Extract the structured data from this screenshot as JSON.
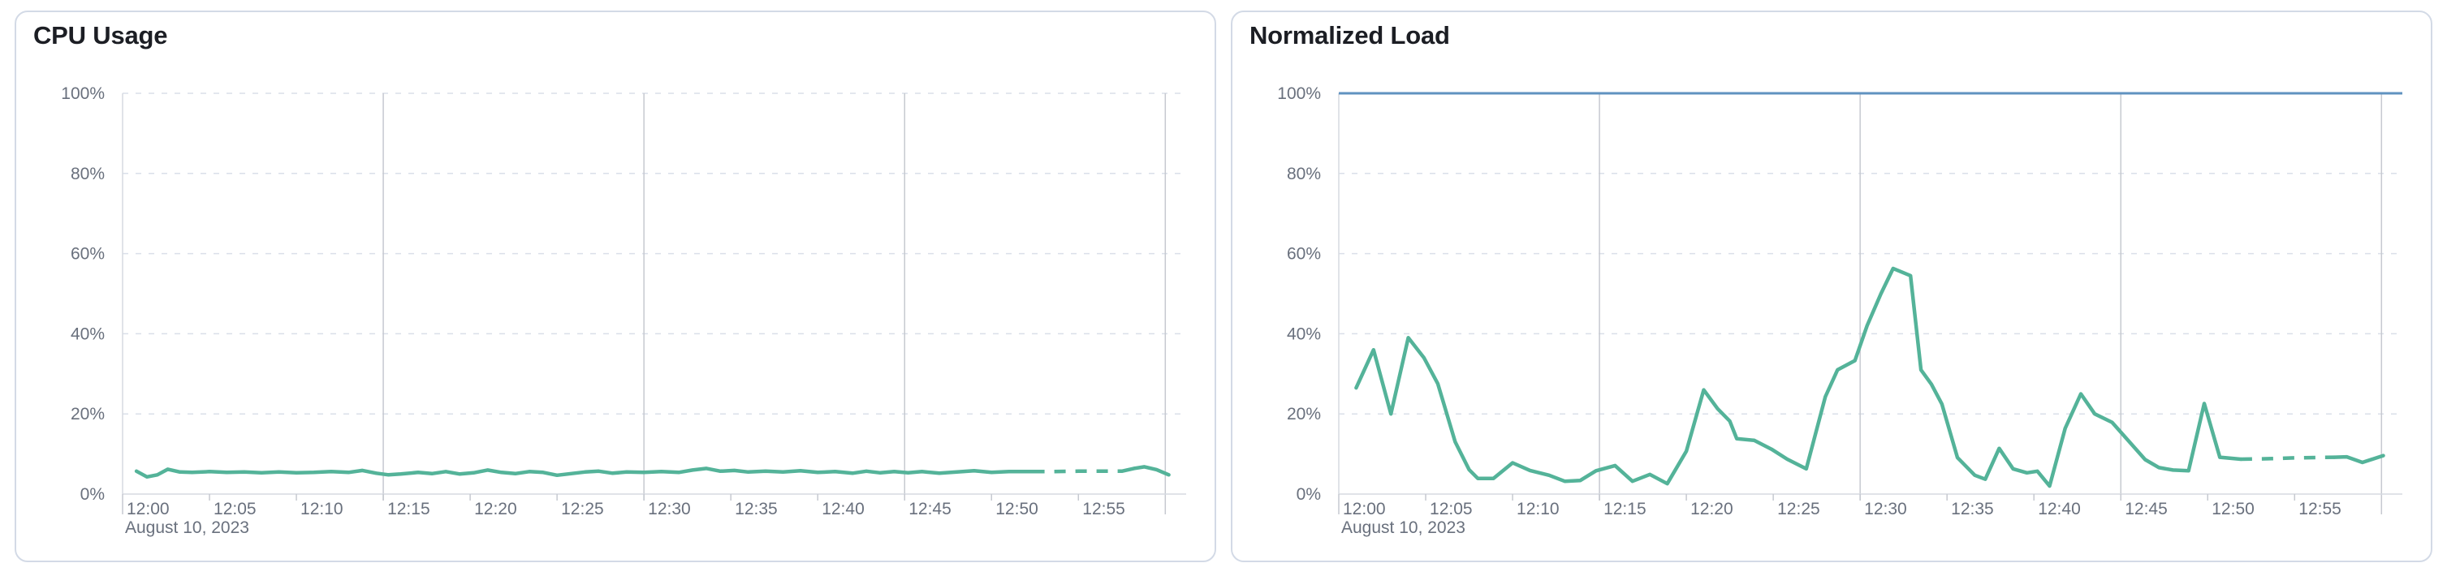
{
  "colors": {
    "series_green": "#54b399",
    "reference_blue": "#6092c0",
    "grid_dashed": "#dadfe9",
    "grid_vertical": "#c6c9d0",
    "axis_line": "#d6dae1",
    "tick_text": "#69707d",
    "title_text": "#1c1e24",
    "panel_border": "#d3dae6",
    "panel_background": "#ffffff"
  },
  "chart_data": [
    {
      "type": "line",
      "title": "CPU Usage",
      "x_axis": {
        "tick_labels": [
          "12:00",
          "12:05",
          "12:10",
          "12:15",
          "12:20",
          "12:25",
          "12:30",
          "12:35",
          "12:40",
          "12:45",
          "12:50",
          "12:55"
        ],
        "tick_interval_minutes": 5,
        "gridline_minutes": [
          15,
          30,
          45,
          60
        ],
        "date_label": "August 10, 2023",
        "range_minutes": [
          0,
          61
        ]
      },
      "y_axis": {
        "tick_labels": [
          "0%",
          "20%",
          "40%",
          "60%",
          "80%",
          "100%"
        ],
        "min": 0,
        "max": 100,
        "unit": "%"
      },
      "reference_line": null,
      "series": [
        {
          "name": "CPU usage",
          "color": "#54b399",
          "unit": "%",
          "segments": [
            {
              "style": "solid",
              "points": [
                [
                  0.8,
                  5.7
                ],
                [
                  1.4,
                  4.3
                ],
                [
                  2.0,
                  4.8
                ],
                [
                  2.6,
                  6.2
                ],
                [
                  3.3,
                  5.5
                ],
                [
                  4,
                  5.4
                ],
                [
                  5,
                  5.6
                ],
                [
                  6,
                  5.4
                ],
                [
                  7,
                  5.5
                ],
                [
                  8,
                  5.3
                ],
                [
                  9,
                  5.5
                ],
                [
                  10,
                  5.3
                ],
                [
                  11,
                  5.4
                ],
                [
                  12,
                  5.6
                ],
                [
                  13,
                  5.4
                ],
                [
                  13.8,
                  5.9
                ],
                [
                  14.6,
                  5.2
                ],
                [
                  15.3,
                  4.8
                ],
                [
                  16,
                  5.0
                ],
                [
                  17,
                  5.4
                ],
                [
                  17.8,
                  5.1
                ],
                [
                  18.6,
                  5.6
                ],
                [
                  19.4,
                  5.0
                ],
                [
                  20.2,
                  5.3
                ],
                [
                  21,
                  6.0
                ],
                [
                  21.8,
                  5.4
                ],
                [
                  22.6,
                  5.1
                ],
                [
                  23.4,
                  5.6
                ],
                [
                  24.2,
                  5.4
                ],
                [
                  25,
                  4.7
                ],
                [
                  25.8,
                  5.1
                ],
                [
                  26.6,
                  5.5
                ],
                [
                  27.4,
                  5.7
                ],
                [
                  28.2,
                  5.2
                ],
                [
                  29,
                  5.5
                ],
                [
                  30,
                  5.4
                ],
                [
                  31,
                  5.6
                ],
                [
                  32,
                  5.4
                ],
                [
                  32.8,
                  6.0
                ],
                [
                  33.6,
                  6.4
                ],
                [
                  34.4,
                  5.7
                ],
                [
                  35.2,
                  5.9
                ],
                [
                  36,
                  5.5
                ],
                [
                  37,
                  5.7
                ],
                [
                  38,
                  5.5
                ],
                [
                  39,
                  5.8
                ],
                [
                  40,
                  5.4
                ],
                [
                  41,
                  5.6
                ],
                [
                  42,
                  5.2
                ],
                [
                  42.8,
                  5.7
                ],
                [
                  43.6,
                  5.3
                ],
                [
                  44.4,
                  5.6
                ],
                [
                  45.2,
                  5.3
                ],
                [
                  46,
                  5.6
                ],
                [
                  47,
                  5.2
                ],
                [
                  48,
                  5.5
                ],
                [
                  49,
                  5.8
                ],
                [
                  50,
                  5.4
                ],
                [
                  51,
                  5.6
                ],
                [
                  52.4,
                  5.6
                ]
              ]
            },
            {
              "style": "dashed",
              "points": [
                [
                  52.4,
                  5.6
                ],
                [
                  53.6,
                  5.6
                ],
                [
                  55,
                  5.7
                ],
                [
                  56.3,
                  5.7
                ],
                [
                  57.5,
                  5.7
                ]
              ]
            },
            {
              "style": "solid",
              "points": [
                [
                  57.5,
                  5.7
                ],
                [
                  58.2,
                  6.4
                ],
                [
                  58.8,
                  6.8
                ],
                [
                  59.5,
                  6.1
                ],
                [
                  60.2,
                  4.8
                ]
              ]
            }
          ]
        }
      ]
    },
    {
      "type": "line",
      "title": "Normalized Load",
      "x_axis": {
        "tick_labels": [
          "12:00",
          "12:05",
          "12:10",
          "12:15",
          "12:20",
          "12:25",
          "12:30",
          "12:35",
          "12:40",
          "12:45",
          "12:50",
          "12:55"
        ],
        "tick_interval_minutes": 5,
        "gridline_minutes": [
          15,
          30,
          45,
          60
        ],
        "date_label": "August 10, 2023",
        "range_minutes": [
          0,
          61
        ]
      },
      "y_axis": {
        "tick_labels": [
          "0%",
          "20%",
          "40%",
          "60%",
          "80%",
          "100%"
        ],
        "min": 0,
        "max": 100,
        "unit": "%"
      },
      "reference_line": {
        "value": 100,
        "color": "#6092c0"
      },
      "series": [
        {
          "name": "Normalized load",
          "color": "#54b399",
          "unit": "%",
          "segments": [
            {
              "style": "solid",
              "points": [
                [
                  1,
                  26.5
                ],
                [
                  2,
                  36
                ],
                [
                  3,
                  20
                ],
                [
                  4,
                  39
                ],
                [
                  4.9,
                  34
                ],
                [
                  5.7,
                  27.5
                ],
                [
                  6.7,
                  13
                ],
                [
                  7.5,
                  6.1
                ],
                [
                  8,
                  3.9
                ],
                [
                  8.9,
                  3.9
                ],
                [
                  10,
                  7.8
                ],
                [
                  11,
                  5.9
                ],
                [
                  12.1,
                  4.7
                ],
                [
                  13,
                  3.2
                ],
                [
                  13.9,
                  3.4
                ],
                [
                  14.8,
                  5.8
                ],
                [
                  15.9,
                  7.1
                ],
                [
                  16.9,
                  3.2
                ],
                [
                  17.9,
                  4.9
                ],
                [
                  18.9,
                  2.6
                ],
                [
                  20,
                  10.7
                ],
                [
                  21,
                  26
                ],
                [
                  21.8,
                  21.3
                ],
                [
                  22.5,
                  18.2
                ],
                [
                  22.9,
                  13.8
                ],
                [
                  23.9,
                  13.4
                ],
                [
                  24.9,
                  11.2
                ],
                [
                  25.8,
                  8.7
                ],
                [
                  26.9,
                  6.3
                ],
                [
                  28,
                  24.3
                ],
                [
                  28.7,
                  31
                ],
                [
                  29.7,
                  33.3
                ],
                [
                  30.4,
                  42
                ],
                [
                  31.2,
                  50
                ],
                [
                  31.9,
                  56.3
                ],
                [
                  32.9,
                  54.5
                ],
                [
                  33.5,
                  31
                ],
                [
                  34.1,
                  27.4
                ],
                [
                  34.7,
                  22.5
                ],
                [
                  35.6,
                  9.1
                ],
                [
                  36.6,
                  4.7
                ],
                [
                  37.2,
                  3.7
                ],
                [
                  38,
                  11.4
                ],
                [
                  38.8,
                  6.3
                ],
                [
                  39.6,
                  5.3
                ],
                [
                  40.2,
                  5.7
                ],
                [
                  40.9,
                  2
                ],
                [
                  41.8,
                  16.4
                ],
                [
                  42.7,
                  25
                ],
                [
                  43.5,
                  20
                ],
                [
                  44.5,
                  17.9
                ],
                [
                  45.5,
                  13
                ],
                [
                  46.4,
                  8.6
                ],
                [
                  47.2,
                  6.6
                ],
                [
                  48,
                  6
                ],
                [
                  48.9,
                  5.8
                ],
                [
                  49.8,
                  22.6
                ],
                [
                  50.7,
                  9.2
                ],
                [
                  51.9,
                  8.7
                ]
              ]
            },
            {
              "style": "dashed",
              "points": [
                [
                  51.9,
                  8.7
                ],
                [
                  53.3,
                  8.8
                ],
                [
                  54.8,
                  9
                ],
                [
                  56.2,
                  9.1
                ],
                [
                  57.3,
                  9.2
                ]
              ]
            },
            {
              "style": "solid",
              "points": [
                [
                  57.3,
                  9.2
                ],
                [
                  58,
                  9.3
                ],
                [
                  58.9,
                  7.9
                ],
                [
                  60.1,
                  9.6
                ]
              ]
            }
          ]
        }
      ]
    }
  ]
}
